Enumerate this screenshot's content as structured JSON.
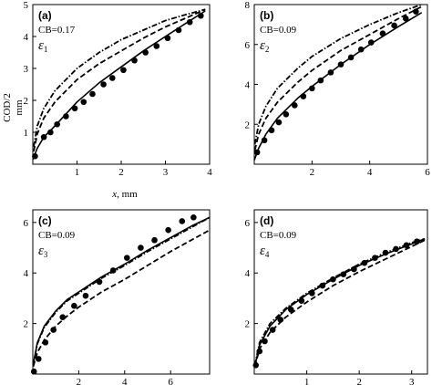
{
  "figure": {
    "ylabel_line1": "COD/2",
    "ylabel_line2": "mm",
    "xlabel_prefix": "x",
    "xlabel_suffix": ", mm"
  },
  "chart_data": [
    {
      "type": "line",
      "panel": "(a)",
      "cb_label": "CB=0.17",
      "eps_symbol": "ε",
      "eps_index": "1",
      "xlim": [
        0,
        4
      ],
      "ylim": [
        0,
        5
      ],
      "xticks": [
        "1",
        "2",
        "3",
        "4"
      ],
      "yticks": [
        "1",
        "2",
        "3",
        "4",
        "5"
      ],
      "series": [
        {
          "style": "dashdot",
          "x": [
            0.02,
            0.1,
            0.25,
            0.5,
            1,
            1.5,
            2,
            2.5,
            3,
            3.5,
            3.9
          ],
          "y": [
            0.55,
            1.2,
            1.75,
            2.3,
            3.0,
            3.5,
            3.9,
            4.2,
            4.5,
            4.7,
            4.85
          ]
        },
        {
          "style": "dashed",
          "x": [
            0.02,
            0.1,
            0.25,
            0.5,
            1,
            1.5,
            2,
            2.5,
            3,
            3.5,
            3.9
          ],
          "y": [
            0.4,
            0.95,
            1.45,
            1.95,
            2.65,
            3.15,
            3.55,
            3.95,
            4.3,
            4.6,
            4.85
          ]
        },
        {
          "style": "solid",
          "x": [
            0,
            0.1,
            0.25,
            0.5,
            1,
            1.5,
            2,
            2.5,
            3,
            3.5,
            3.9
          ],
          "y": [
            0.15,
            0.5,
            0.85,
            1.2,
            1.95,
            2.55,
            3.05,
            3.55,
            4.0,
            4.45,
            4.8
          ]
        },
        {
          "style": "markers",
          "x": [
            0.05,
            0.25,
            0.4,
            0.55,
            0.75,
            0.95,
            1.15,
            1.35,
            1.6,
            1.8,
            2.05,
            2.3,
            2.55,
            2.8,
            3.05,
            3.3,
            3.55,
            3.8
          ],
          "y": [
            0.25,
            0.85,
            1.0,
            1.25,
            1.5,
            1.75,
            1.95,
            2.2,
            2.5,
            2.7,
            2.95,
            3.25,
            3.5,
            3.7,
            3.95,
            4.2,
            4.45,
            4.65
          ]
        }
      ]
    },
    {
      "type": "line",
      "panel": "(b)",
      "cb_label": "CB=0.09",
      "eps_symbol": "ε",
      "eps_index": "2",
      "xlim": [
        0,
        6
      ],
      "ylim": [
        0,
        8
      ],
      "xticks": [
        "2",
        "4",
        "6"
      ],
      "yticks": [
        "2",
        "4",
        "6",
        "8"
      ],
      "series": [
        {
          "style": "dashdot",
          "x": [
            0.02,
            0.15,
            0.4,
            0.8,
            1.5,
            2,
            3,
            4,
            5,
            5.8
          ],
          "y": [
            1.0,
            2.0,
            2.9,
            3.8,
            4.8,
            5.4,
            6.3,
            7.0,
            7.6,
            8.0
          ]
        },
        {
          "style": "dashed",
          "x": [
            0.02,
            0.15,
            0.4,
            0.8,
            1.5,
            2,
            3,
            4,
            5,
            5.8
          ],
          "y": [
            0.7,
            1.5,
            2.3,
            3.1,
            4.1,
            4.7,
            5.7,
            6.5,
            7.3,
            7.9
          ]
        },
        {
          "style": "solid",
          "x": [
            0,
            0.15,
            0.4,
            0.8,
            1.5,
            2,
            3,
            4,
            5,
            5.8
          ],
          "y": [
            0.2,
            0.8,
            1.5,
            2.3,
            3.3,
            3.9,
            5.0,
            6.0,
            6.9,
            7.6
          ]
        },
        {
          "style": "markers",
          "x": [
            0.1,
            0.35,
            0.6,
            0.85,
            1.1,
            1.4,
            1.7,
            2.0,
            2.3,
            2.65,
            3.0,
            3.35,
            3.7,
            4.05,
            4.45,
            4.85,
            5.25,
            5.6
          ],
          "y": [
            0.6,
            1.2,
            1.7,
            2.1,
            2.5,
            2.95,
            3.4,
            3.8,
            4.2,
            4.6,
            5.0,
            5.35,
            5.75,
            6.1,
            6.55,
            6.95,
            7.3,
            7.65
          ]
        }
      ]
    },
    {
      "type": "line",
      "panel": "(c)",
      "cb_label": "CB=0.09",
      "eps_symbol": "ε",
      "eps_index": "3",
      "xlim": [
        0,
        7.7
      ],
      "ylim": [
        0,
        6.5
      ],
      "xticks": [
        "2",
        "4",
        "6"
      ],
      "yticks": [
        "2",
        "4",
        "6"
      ],
      "series": [
        {
          "style": "dashdot",
          "x": [
            0.02,
            0.2,
            0.5,
            1,
            1.5,
            2,
            3,
            4,
            5,
            6,
            7,
            7.7
          ],
          "y": [
            0.35,
            1.2,
            1.85,
            2.45,
            2.9,
            3.2,
            3.8,
            4.3,
            4.85,
            5.35,
            5.85,
            6.2
          ]
        },
        {
          "style": "dashed",
          "x": [
            0.02,
            0.2,
            0.5,
            1,
            1.5,
            2,
            3,
            4,
            5,
            6,
            7,
            7.7
          ],
          "y": [
            0.3,
            0.85,
            1.35,
            1.9,
            2.3,
            2.65,
            3.25,
            3.75,
            4.3,
            4.85,
            5.35,
            5.7
          ]
        },
        {
          "style": "solid",
          "x": [
            0.02,
            0.2,
            0.5,
            1,
            1.5,
            2,
            3,
            4,
            5,
            6,
            7,
            7.7
          ],
          "y": [
            0.4,
            1.25,
            1.9,
            2.5,
            2.95,
            3.25,
            3.85,
            4.35,
            4.9,
            5.4,
            5.9,
            6.2
          ]
        },
        {
          "style": "markers",
          "x": [
            0.05,
            0.25,
            0.55,
            0.9,
            1.3,
            1.8,
            2.3,
            2.9,
            3.5,
            4.1,
            4.7,
            5.3,
            5.9,
            6.5,
            7.0
          ],
          "y": [
            0.1,
            0.6,
            1.25,
            1.75,
            2.25,
            2.7,
            3.1,
            3.65,
            4.1,
            4.6,
            5.0,
            5.3,
            5.7,
            6.05,
            6.2
          ]
        }
      ]
    },
    {
      "type": "line",
      "panel": "(d)",
      "cb_label": "CB=0.09",
      "eps_symbol": "ε",
      "eps_index": "4",
      "xlim": [
        0,
        3.3
      ],
      "ylim": [
        0,
        6.5
      ],
      "xticks": [
        "1",
        "2",
        "3"
      ],
      "yticks": [
        "2",
        "4",
        "6"
      ],
      "series": [
        {
          "style": "dashdot",
          "x": [
            0.01,
            0.1,
            0.3,
            0.6,
            1,
            1.5,
            2,
            2.5,
            3,
            3.25
          ],
          "y": [
            0.35,
            1.25,
            2.0,
            2.6,
            3.2,
            3.8,
            4.35,
            4.8,
            5.2,
            5.35
          ]
        },
        {
          "style": "dashed",
          "x": [
            0.01,
            0.1,
            0.3,
            0.6,
            1,
            1.5,
            2,
            2.5,
            3,
            3.25
          ],
          "y": [
            0.3,
            1.0,
            1.65,
            2.25,
            2.85,
            3.5,
            4.05,
            4.55,
            5.05,
            5.3
          ]
        },
        {
          "style": "solid",
          "x": [
            0.01,
            0.1,
            0.3,
            0.6,
            1,
            1.5,
            2,
            2.5,
            3,
            3.25
          ],
          "y": [
            0.3,
            1.15,
            1.9,
            2.55,
            3.15,
            3.75,
            4.3,
            4.75,
            5.15,
            5.35
          ]
        },
        {
          "style": "markers",
          "x": [
            0.03,
            0.1,
            0.2,
            0.35,
            0.5,
            0.7,
            0.9,
            1.1,
            1.3,
            1.5,
            1.7,
            1.9,
            2.1,
            2.3,
            2.5,
            2.7,
            2.9,
            3.1
          ],
          "y": [
            0.35,
            0.9,
            1.3,
            1.75,
            2.15,
            2.55,
            2.9,
            3.2,
            3.5,
            3.75,
            3.95,
            4.15,
            4.4,
            4.6,
            4.8,
            4.95,
            5.1,
            5.25
          ]
        }
      ]
    }
  ]
}
